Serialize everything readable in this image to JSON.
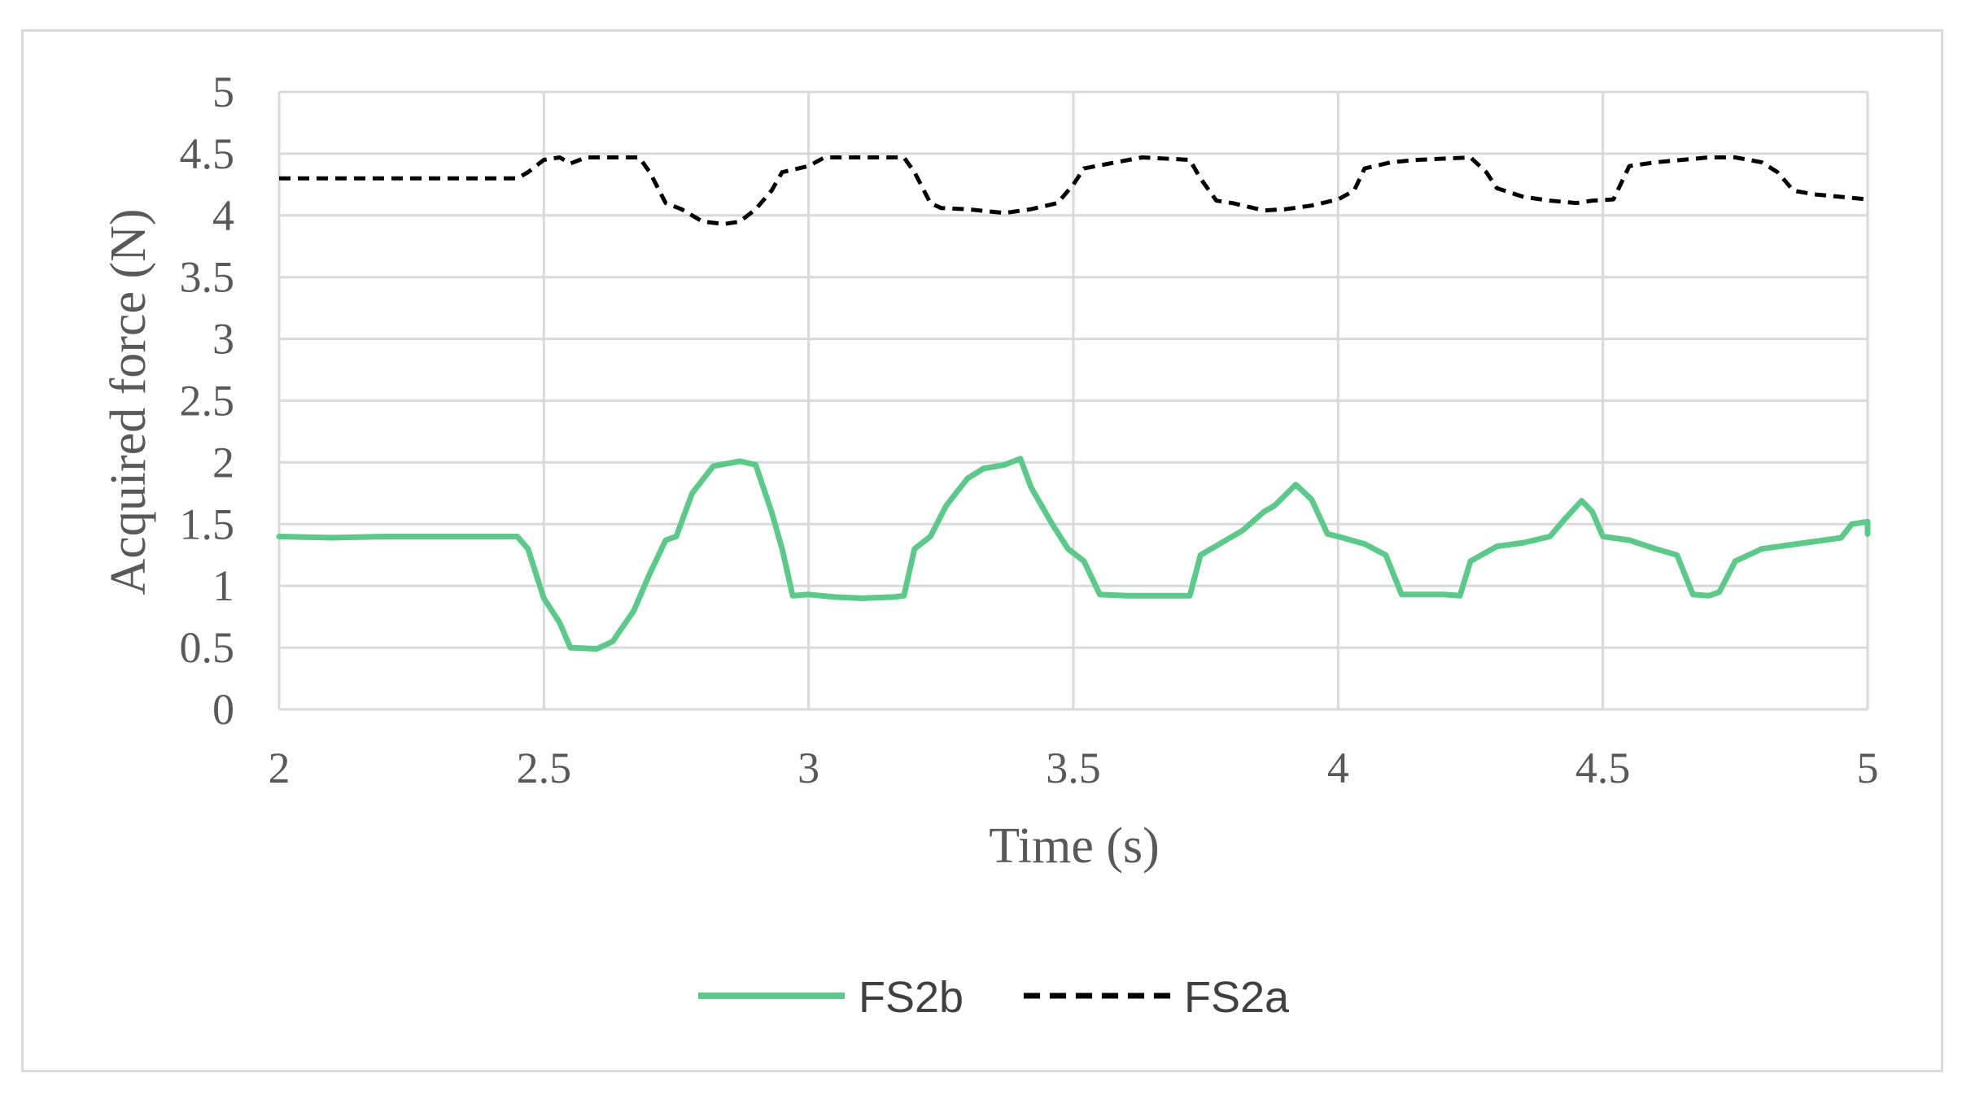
{
  "chart_data": {
    "type": "line",
    "title": "",
    "xlabel": "Time (s)",
    "ylabel": "Acquired force (N)",
    "xlim": [
      2,
      5
    ],
    "ylim": [
      0,
      5
    ],
    "xticks": [
      "2",
      "2.5",
      "3",
      "3.5",
      "4",
      "4.5",
      "5"
    ],
    "yticks": [
      "0",
      "0.5",
      "1",
      "1.5",
      "2",
      "2.5",
      "3",
      "3.5",
      "4",
      "4.5",
      "5"
    ],
    "grid": true,
    "legend_position": "bottom",
    "series": [
      {
        "name": "FS2b",
        "color": "#5cc98a",
        "style": "solid",
        "points": [
          [
            2.0,
            1.4
          ],
          [
            2.1,
            1.39
          ],
          [
            2.2,
            1.4
          ],
          [
            2.3,
            1.4
          ],
          [
            2.45,
            1.4
          ],
          [
            2.47,
            1.3
          ],
          [
            2.5,
            0.9
          ],
          [
            2.53,
            0.7
          ],
          [
            2.55,
            0.5
          ],
          [
            2.6,
            0.49
          ],
          [
            2.63,
            0.55
          ],
          [
            2.67,
            0.8
          ],
          [
            2.7,
            1.1
          ],
          [
            2.73,
            1.37
          ],
          [
            2.75,
            1.4
          ],
          [
            2.78,
            1.75
          ],
          [
            2.82,
            1.97
          ],
          [
            2.87,
            2.01
          ],
          [
            2.9,
            1.98
          ],
          [
            2.93,
            1.6
          ],
          [
            2.95,
            1.3
          ],
          [
            2.97,
            0.92
          ],
          [
            3.0,
            0.93
          ],
          [
            3.05,
            0.91
          ],
          [
            3.1,
            0.9
          ],
          [
            3.16,
            0.91
          ],
          [
            3.18,
            0.92
          ],
          [
            3.2,
            1.3
          ],
          [
            3.23,
            1.4
          ],
          [
            3.26,
            1.65
          ],
          [
            3.3,
            1.87
          ],
          [
            3.33,
            1.95
          ],
          [
            3.37,
            1.98
          ],
          [
            3.4,
            2.03
          ],
          [
            3.42,
            1.8
          ],
          [
            3.46,
            1.5
          ],
          [
            3.49,
            1.3
          ],
          [
            3.52,
            1.2
          ],
          [
            3.55,
            0.93
          ],
          [
            3.6,
            0.92
          ],
          [
            3.65,
            0.92
          ],
          [
            3.7,
            0.92
          ],
          [
            3.72,
            0.92
          ],
          [
            3.74,
            1.25
          ],
          [
            3.78,
            1.35
          ],
          [
            3.82,
            1.45
          ],
          [
            3.86,
            1.6
          ],
          [
            3.88,
            1.65
          ],
          [
            3.92,
            1.82
          ],
          [
            3.95,
            1.7
          ],
          [
            3.98,
            1.42
          ],
          [
            4.0,
            1.4
          ],
          [
            4.05,
            1.34
          ],
          [
            4.09,
            1.25
          ],
          [
            4.12,
            0.93
          ],
          [
            4.15,
            0.93
          ],
          [
            4.2,
            0.93
          ],
          [
            4.23,
            0.92
          ],
          [
            4.25,
            1.2
          ],
          [
            4.3,
            1.32
          ],
          [
            4.35,
            1.35
          ],
          [
            4.4,
            1.4
          ],
          [
            4.43,
            1.55
          ],
          [
            4.46,
            1.69
          ],
          [
            4.48,
            1.6
          ],
          [
            4.5,
            1.4
          ],
          [
            4.55,
            1.37
          ],
          [
            4.6,
            1.3
          ],
          [
            4.64,
            1.25
          ],
          [
            4.67,
            0.93
          ],
          [
            4.7,
            0.92
          ],
          [
            4.72,
            0.95
          ],
          [
            4.75,
            1.2
          ],
          [
            4.8,
            1.3
          ],
          [
            4.85,
            1.33
          ],
          [
            4.9,
            1.36
          ],
          [
            4.95,
            1.39
          ],
          [
            4.97,
            1.5
          ],
          [
            5.0,
            1.52
          ],
          [
            5.0,
            1.42
          ]
        ]
      },
      {
        "name": "FS2a",
        "color": "#000000",
        "style": "dashed",
        "points": [
          [
            2.0,
            4.3
          ],
          [
            2.2,
            4.3
          ],
          [
            2.3,
            4.3
          ],
          [
            2.45,
            4.3
          ],
          [
            2.47,
            4.35
          ],
          [
            2.5,
            4.45
          ],
          [
            2.53,
            4.47
          ],
          [
            2.55,
            4.42
          ],
          [
            2.58,
            4.47
          ],
          [
            2.68,
            4.47
          ],
          [
            2.7,
            4.35
          ],
          [
            2.73,
            4.1
          ],
          [
            2.76,
            4.05
          ],
          [
            2.8,
            3.95
          ],
          [
            2.84,
            3.93
          ],
          [
            2.87,
            3.95
          ],
          [
            2.9,
            4.05
          ],
          [
            2.93,
            4.2
          ],
          [
            2.95,
            4.35
          ],
          [
            3.0,
            4.4
          ],
          [
            3.03,
            4.47
          ],
          [
            3.18,
            4.47
          ],
          [
            3.2,
            4.35
          ],
          [
            3.23,
            4.1
          ],
          [
            3.25,
            4.06
          ],
          [
            3.3,
            4.05
          ],
          [
            3.37,
            4.02
          ],
          [
            3.42,
            4.05
          ],
          [
            3.47,
            4.1
          ],
          [
            3.5,
            4.25
          ],
          [
            3.52,
            4.38
          ],
          [
            3.58,
            4.43
          ],
          [
            3.63,
            4.47
          ],
          [
            3.72,
            4.45
          ],
          [
            3.74,
            4.3
          ],
          [
            3.77,
            4.12
          ],
          [
            3.8,
            4.1
          ],
          [
            3.86,
            4.04
          ],
          [
            3.9,
            4.05
          ],
          [
            3.95,
            4.08
          ],
          [
            4.0,
            4.13
          ],
          [
            4.03,
            4.2
          ],
          [
            4.05,
            4.38
          ],
          [
            4.1,
            4.43
          ],
          [
            4.15,
            4.45
          ],
          [
            4.25,
            4.47
          ],
          [
            4.28,
            4.35
          ],
          [
            4.3,
            4.22
          ],
          [
            4.35,
            4.15
          ],
          [
            4.4,
            4.12
          ],
          [
            4.45,
            4.1
          ],
          [
            4.48,
            4.12
          ],
          [
            4.52,
            4.13
          ],
          [
            4.55,
            4.4
          ],
          [
            4.6,
            4.43
          ],
          [
            4.65,
            4.45
          ],
          [
            4.7,
            4.47
          ],
          [
            4.75,
            4.47
          ],
          [
            4.8,
            4.43
          ],
          [
            4.83,
            4.35
          ],
          [
            4.86,
            4.2
          ],
          [
            4.9,
            4.17
          ],
          [
            4.95,
            4.15
          ],
          [
            5.0,
            4.13
          ]
        ]
      }
    ]
  }
}
